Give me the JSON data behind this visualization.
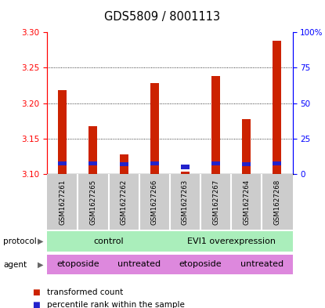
{
  "title": "GDS5809 / 8001113",
  "samples": [
    "GSM1627261",
    "GSM1627265",
    "GSM1627262",
    "GSM1627266",
    "GSM1627263",
    "GSM1627267",
    "GSM1627264",
    "GSM1627268"
  ],
  "red_values": [
    3.218,
    3.168,
    3.128,
    3.228,
    3.103,
    3.238,
    3.178,
    3.288
  ],
  "blue_bottoms": [
    3.112,
    3.112,
    3.111,
    3.112,
    3.107,
    3.112,
    3.111,
    3.112
  ],
  "blue_heights": [
    0.006,
    0.006,
    0.006,
    0.006,
    0.006,
    0.006,
    0.006,
    0.006
  ],
  "ylim_left": [
    3.1,
    3.3
  ],
  "ylim_right": [
    0,
    100
  ],
  "yticks_left": [
    3.1,
    3.15,
    3.2,
    3.25,
    3.3
  ],
  "yticks_right": [
    0,
    25,
    50,
    75,
    100
  ],
  "protocol_color": "#aaeebb",
  "agent_color": "#dd88dd",
  "bar_bg_color": "#cccccc",
  "red_bar_color": "#cc2200",
  "blue_bar_color": "#2222cc",
  "legend_red": "transformed count",
  "legend_blue": "percentile rank within the sample",
  "proto_items": [
    {
      "label": "control",
      "start": 0,
      "end": 3
    },
    {
      "label": "EVI1 overexpression",
      "start": 4,
      "end": 7
    }
  ],
  "agent_items": [
    {
      "label": "etoposide",
      "start": 0,
      "end": 1
    },
    {
      "label": "untreated",
      "start": 2,
      "end": 3
    },
    {
      "label": "etoposide",
      "start": 4,
      "end": 5
    },
    {
      "label": "untreated",
      "start": 6,
      "end": 7
    }
  ]
}
